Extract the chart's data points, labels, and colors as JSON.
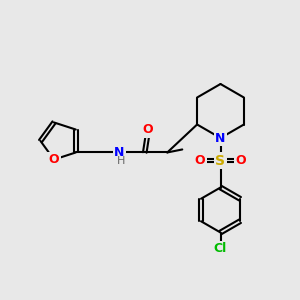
{
  "bg_color": "#e8e8e8",
  "bond_color": "#000000",
  "bond_lw": 1.5,
  "atom_colors": {
    "O": "#ff0000",
    "N": "#0000ff",
    "S": "#ccaa00",
    "Cl": "#00bb00",
    "C": "#000000",
    "H": "#555555"
  },
  "font_size": 9,
  "font_size_small": 8
}
